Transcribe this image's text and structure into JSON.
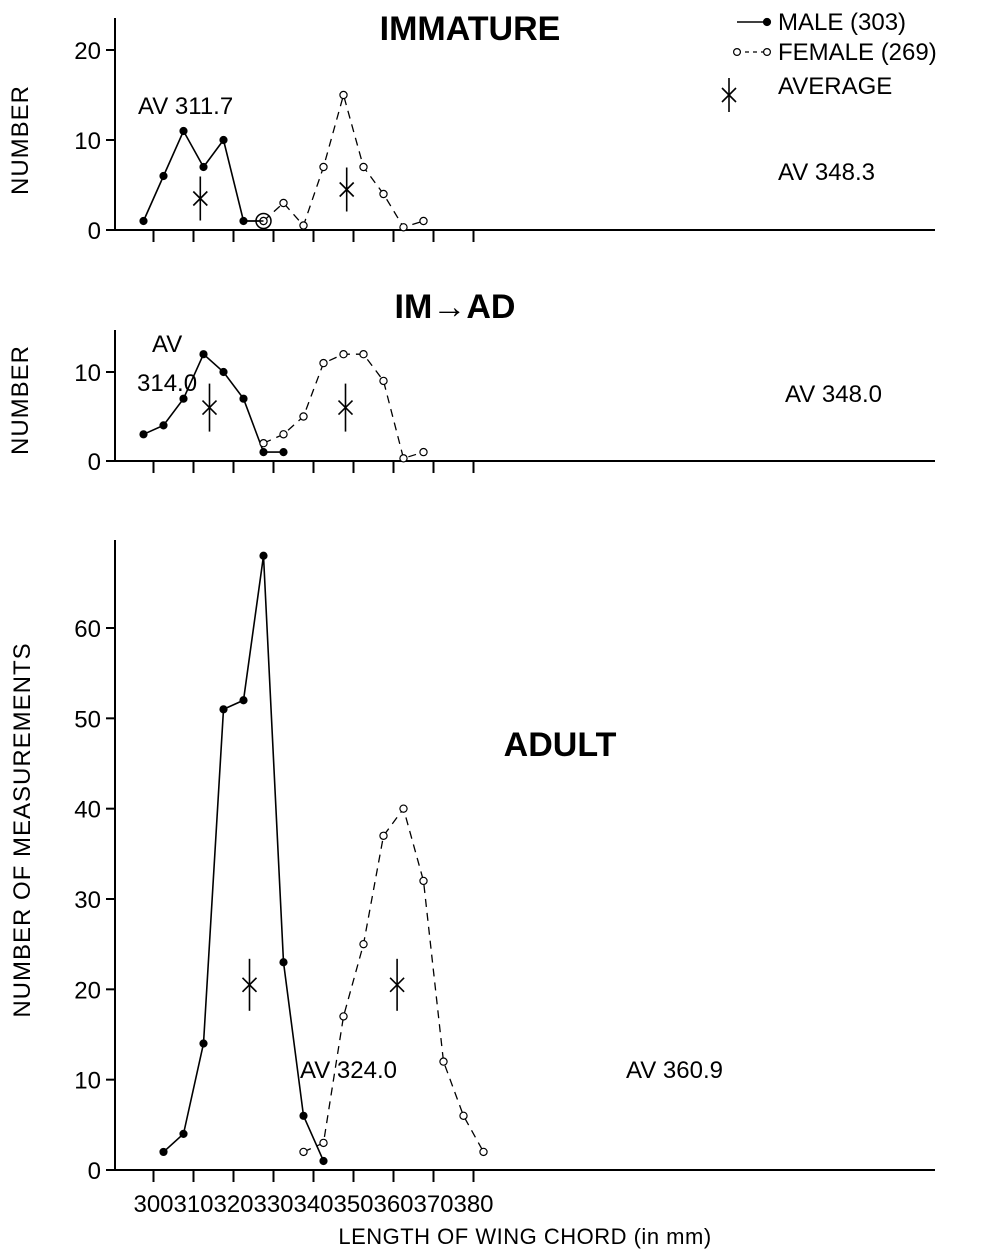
{
  "legend": {
    "male": "MALE (303)",
    "female": "FEMALE (269)",
    "average": "AVERAGE"
  },
  "chart_data": [
    {
      "type": "line",
      "title": "IMMATURE",
      "ylabel": "NUMBER",
      "xlabel": "",
      "xlim": [
        295,
        385
      ],
      "ylim": [
        0,
        22
      ],
      "yticks": [
        0,
        10,
        20
      ],
      "x_minor_ticks": [
        300,
        310,
        320,
        330,
        340,
        350,
        360,
        370,
        380
      ],
      "series": [
        {
          "name": "MALE (303)",
          "style": "solid-filled-dots",
          "points": [
            [
              297.5,
              1
            ],
            [
              302.5,
              6
            ],
            [
              307.5,
              11
            ],
            [
              312.5,
              7
            ],
            [
              317.5,
              10
            ],
            [
              322.5,
              1
            ],
            [
              327.5,
              1
            ]
          ]
        },
        {
          "name": "FEMALE (269)",
          "style": "dashed-open-dots",
          "points": [
            [
              327.5,
              1
            ],
            [
              332.5,
              3
            ],
            [
              337.5,
              0.5
            ],
            [
              342.5,
              7
            ],
            [
              347.5,
              15
            ],
            [
              352.5,
              7
            ],
            [
              357.5,
              4
            ],
            [
              362.5,
              0.3
            ],
            [
              367.5,
              1
            ]
          ]
        }
      ],
      "averages": [
        {
          "x": 311.7,
          "y": 3.5,
          "label": "AV 311.7"
        },
        {
          "x": 348.3,
          "y": 4.5,
          "label": "AV 348.3"
        }
      ]
    },
    {
      "type": "line",
      "title": "IM→AD",
      "ylabel": "NUMBER",
      "xlabel": "",
      "xlim": [
        295,
        385
      ],
      "ylim": [
        0,
        14
      ],
      "yticks": [
        0,
        10
      ],
      "x_minor_ticks": [
        300,
        310,
        320,
        330,
        340,
        350,
        360,
        370,
        380
      ],
      "series": [
        {
          "name": "MALE (303)",
          "style": "solid-filled-dots",
          "points": [
            [
              297.5,
              3
            ],
            [
              302.5,
              4
            ],
            [
              307.5,
              7
            ],
            [
              312.5,
              12
            ],
            [
              317.5,
              10
            ],
            [
              322.5,
              7
            ],
            [
              327.5,
              1
            ],
            [
              332.5,
              1
            ]
          ]
        },
        {
          "name": "FEMALE (269)",
          "style": "dashed-open-dots",
          "points": [
            [
              327.5,
              2
            ],
            [
              332.5,
              3
            ],
            [
              337.5,
              5
            ],
            [
              342.5,
              11
            ],
            [
              347.5,
              12
            ],
            [
              352.5,
              12
            ],
            [
              357.5,
              9
            ],
            [
              362.5,
              0.3
            ],
            [
              367.5,
              1
            ]
          ]
        }
      ],
      "averages": [
        {
          "x": 314.0,
          "y": 6,
          "label_line1": "AV",
          "label_line2": "314.0"
        },
        {
          "x": 348.0,
          "y": 6,
          "label": "AV 348.0"
        }
      ]
    },
    {
      "type": "line",
      "title": "ADULT",
      "ylabel": "NUMBER OF MEASUREMENTS",
      "xlabel": "LENGTH OF WING CHORD (in mm)",
      "xlim": [
        295,
        385
      ],
      "ylim": [
        0,
        70
      ],
      "yticks": [
        0,
        10,
        20,
        30,
        40,
        50,
        60
      ],
      "xticks": [
        300,
        310,
        320,
        330,
        340,
        350,
        360,
        370,
        380
      ],
      "series": [
        {
          "name": "MALE (303)",
          "style": "solid-filled-dots",
          "points": [
            [
              302.5,
              2
            ],
            [
              307.5,
              4
            ],
            [
              312.5,
              14
            ],
            [
              317.5,
              51
            ],
            [
              322.5,
              52
            ],
            [
              327.5,
              68
            ],
            [
              332.5,
              23
            ],
            [
              337.5,
              6
            ],
            [
              342.5,
              1
            ]
          ]
        },
        {
          "name": "FEMALE (269)",
          "style": "dashed-open-dots",
          "points": [
            [
              337.5,
              2
            ],
            [
              342.5,
              3
            ],
            [
              347.5,
              17
            ],
            [
              352.5,
              25
            ],
            [
              357.5,
              37
            ],
            [
              362.5,
              40
            ],
            [
              367.5,
              32
            ],
            [
              372.5,
              12
            ],
            [
              377.5,
              6
            ],
            [
              382.5,
              2
            ]
          ]
        }
      ],
      "averages": [
        {
          "x": 324.0,
          "y": 20.5,
          "label": "AV 324.0"
        },
        {
          "x": 360.9,
          "y": 20.5,
          "label": "AV 360.9"
        }
      ]
    }
  ]
}
